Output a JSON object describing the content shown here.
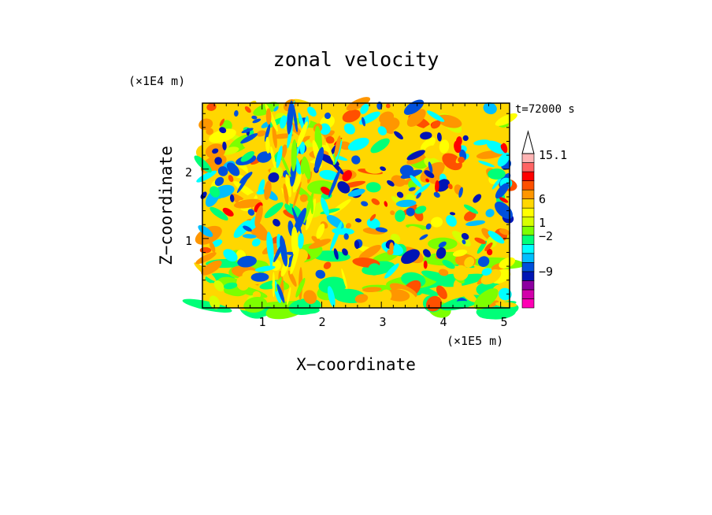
{
  "chart_data": {
    "type": "heatmap",
    "title": "zonal velocity",
    "xlabel": "X−coordinate",
    "ylabel": "Z−coordinate",
    "x_unit": "(×1E5 m)",
    "y_unit": "(×1E4 m)",
    "time_label": "t=72000 s",
    "xlim": [
      0,
      5.15
    ],
    "ylim": [
      0,
      2.95
    ],
    "x_ticks": [
      "1",
      "2",
      "3",
      "4",
      "5"
    ],
    "y_ticks": [
      "1",
      "2"
    ],
    "colorbar": {
      "labels": [
        "15.1",
        "6",
        "1",
        "−2",
        "−9"
      ],
      "colors": [
        "#ff00b4",
        "#d200aa",
        "#8c00a0",
        "#0014b4",
        "#0050dc",
        "#00beff",
        "#00ffff",
        "#00ff78",
        "#7dff00",
        "#d7ff00",
        "#ffff00",
        "#ffd700",
        "#ff9600",
        "#ff5000",
        "#ff0000",
        "#ff6464",
        "#ffb4b4"
      ]
    },
    "pattern": "turbulent mottled field; yellow-orange dominant, blue patches concentrated in upper-left and along diagonal bands, green near bottom"
  }
}
